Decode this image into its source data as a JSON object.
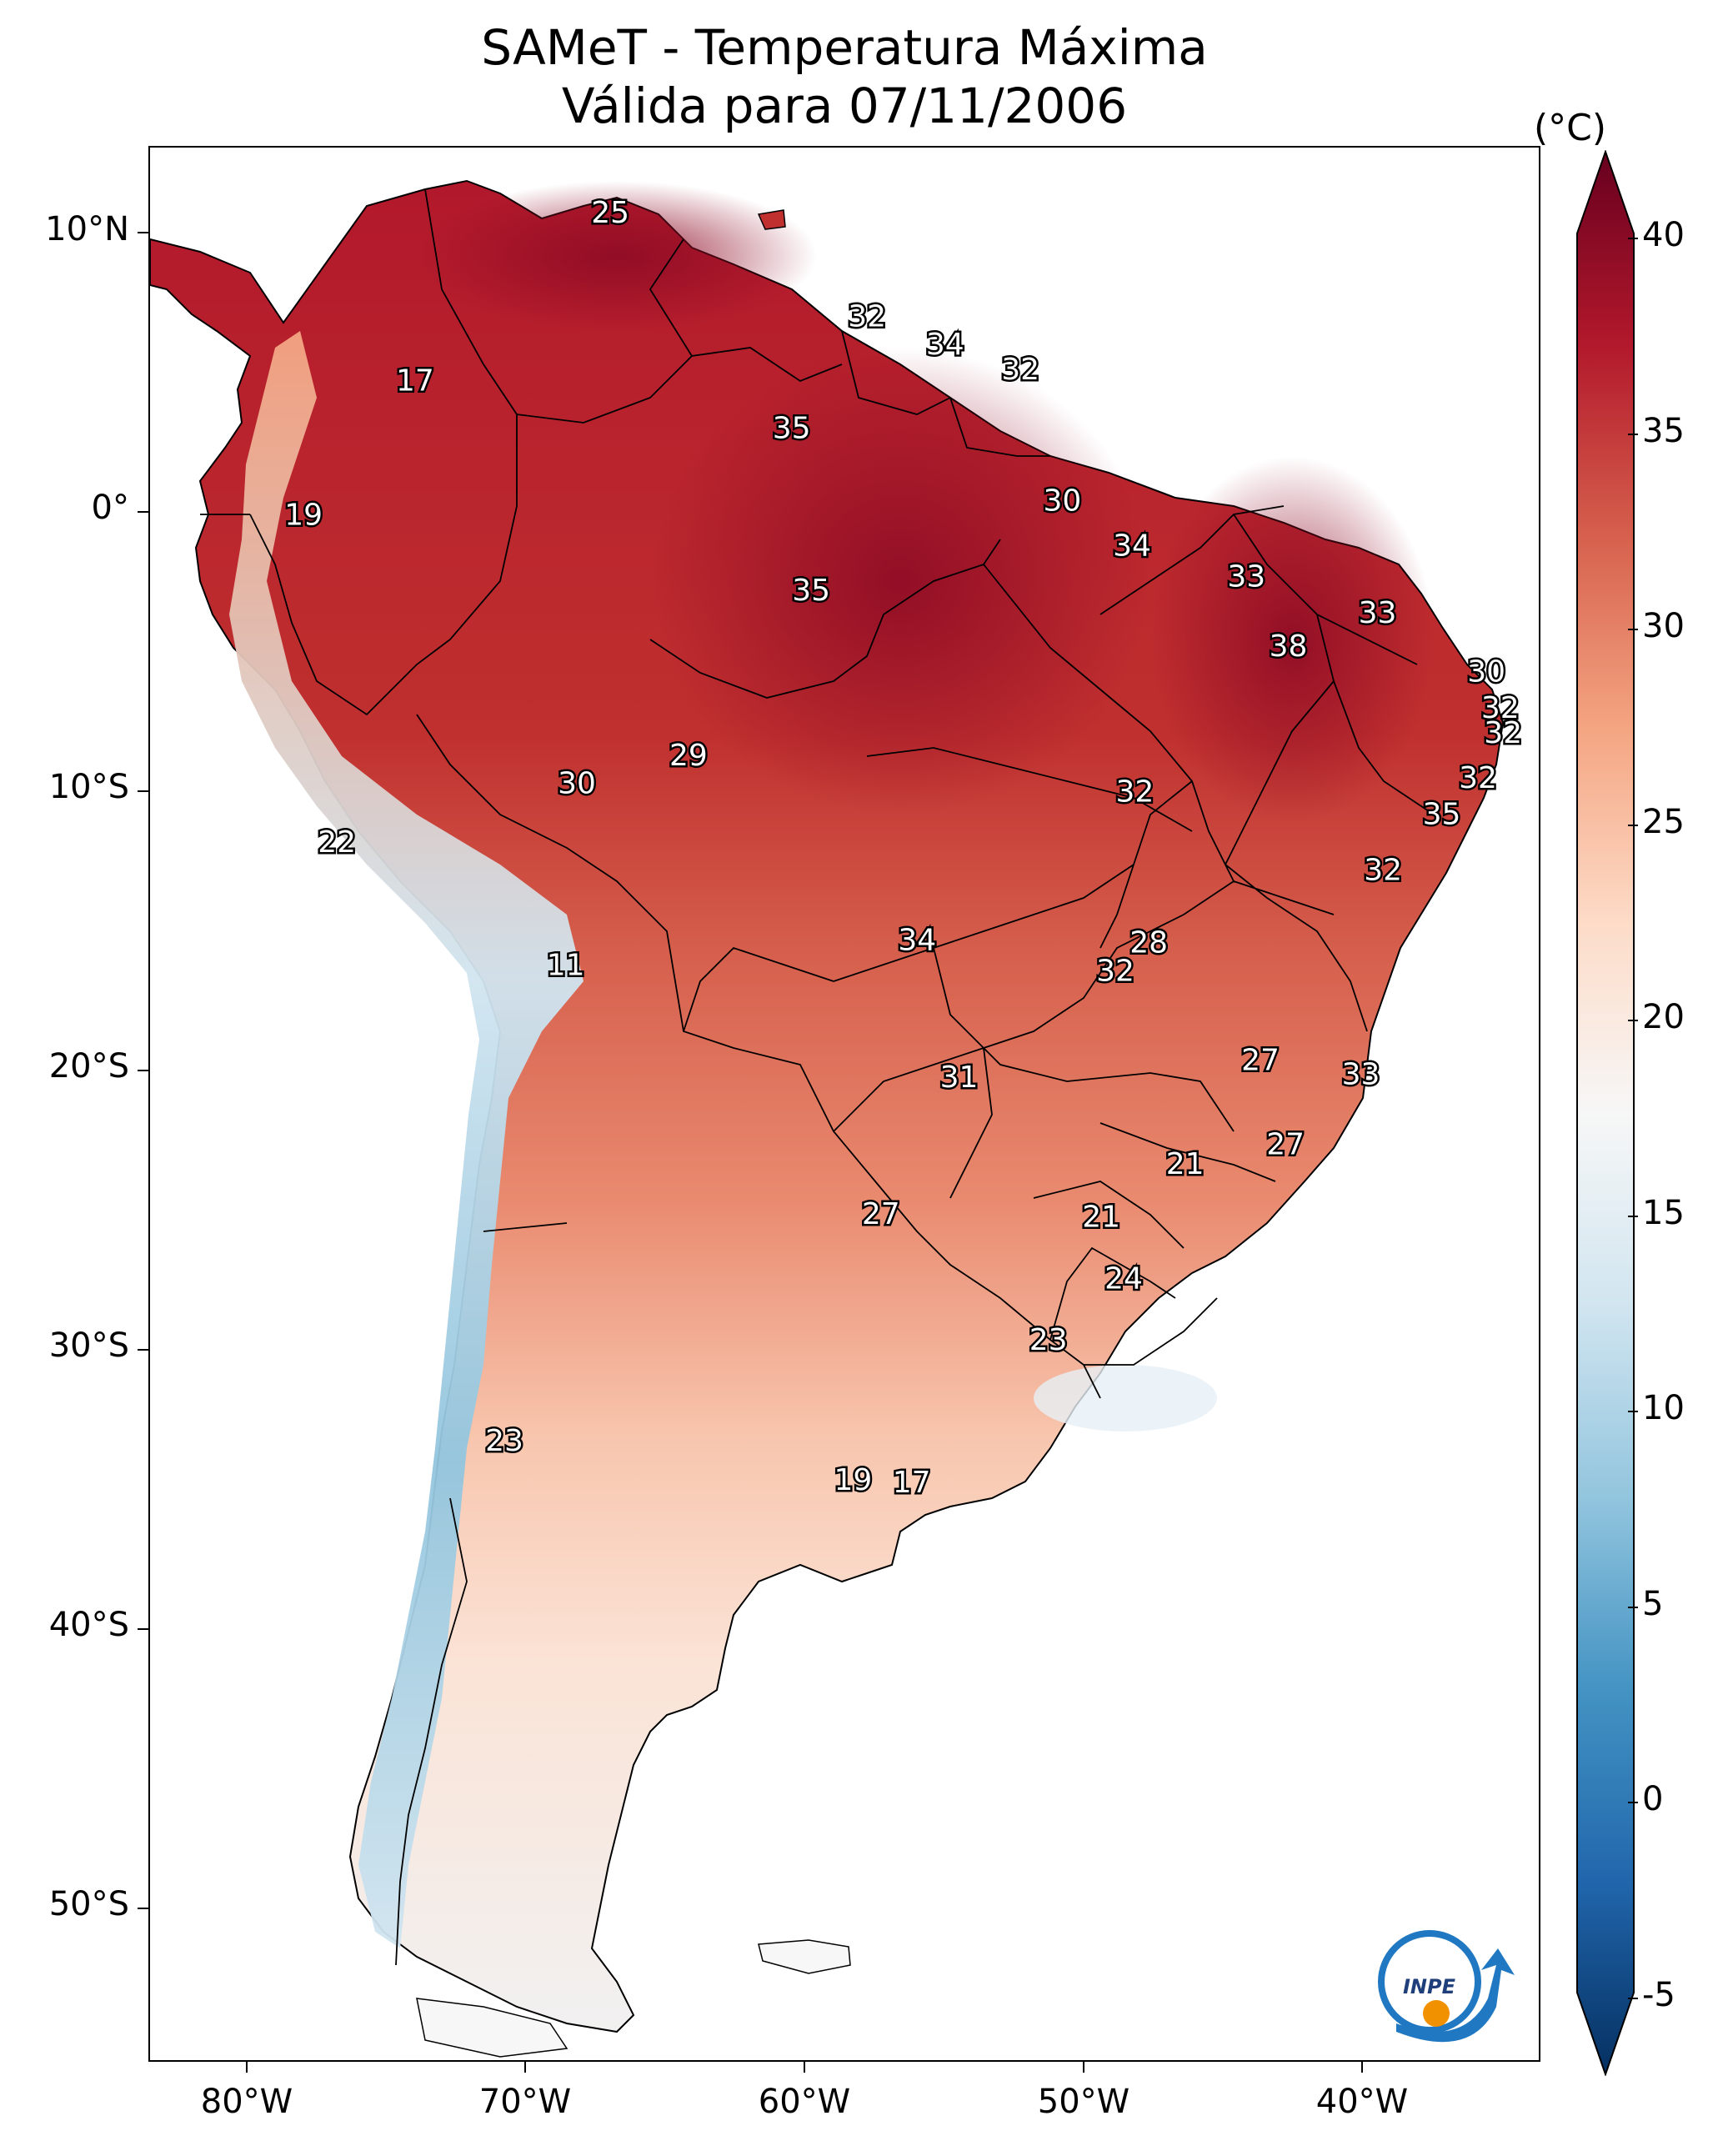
{
  "title_line1": "SAMeT - Temperatura Máxima",
  "title_line2": "Válida para 07/11/2006",
  "latitude_labels": [
    "10°N",
    "0°",
    "10°S",
    "20°S",
    "30°S",
    "40°S",
    "50°S"
  ],
  "longitude_labels": [
    "80°W",
    "70°W",
    "60°W",
    "50°W",
    "40°W"
  ],
  "colorbar": {
    "unit": "(°C)",
    "ticks": [
      "40",
      "35",
      "30",
      "25",
      "20",
      "15",
      "10",
      "5",
      "0",
      "-5"
    ],
    "min": -7,
    "max": 40,
    "colors": [
      "#053061",
      "#2166ac",
      "#4393c3",
      "#92c5de",
      "#d1e5f0",
      "#f7f7f7",
      "#fddbc7",
      "#f4a582",
      "#d6604d",
      "#b2182b",
      "#67001f"
    ]
  },
  "map_values": [
    {
      "value": "25",
      "lon": -67.0,
      "lat": 10.5
    },
    {
      "value": "17",
      "lon": -74.0,
      "lat": 4.5
    },
    {
      "value": "19",
      "lon": -78.0,
      "lat": -0.3
    },
    {
      "value": "32",
      "lon": -57.8,
      "lat": 6.8
    },
    {
      "value": "34",
      "lon": -55.0,
      "lat": 5.8
    },
    {
      "value": "32",
      "lon": -52.3,
      "lat": 4.9
    },
    {
      "value": "35",
      "lon": -60.5,
      "lat": 2.8
    },
    {
      "value": "30",
      "lon": -50.8,
      "lat": 0.2
    },
    {
      "value": "34",
      "lon": -48.3,
      "lat": -1.4
    },
    {
      "value": "35",
      "lon": -59.8,
      "lat": -3.0
    },
    {
      "value": "33",
      "lon": -44.2,
      "lat": -2.5
    },
    {
      "value": "33",
      "lon": -39.5,
      "lat": -3.8
    },
    {
      "value": "38",
      "lon": -42.7,
      "lat": -5.0
    },
    {
      "value": "30",
      "lon": -35.6,
      "lat": -5.9
    },
    {
      "value": "32",
      "lon": -35.1,
      "lat": -7.2
    },
    {
      "value": "32",
      "lon": -35.0,
      "lat": -8.1
    },
    {
      "value": "29",
      "lon": -64.2,
      "lat": -8.9
    },
    {
      "value": "30",
      "lon": -68.2,
      "lat": -9.9
    },
    {
      "value": "32",
      "lon": -48.2,
      "lat": -10.2
    },
    {
      "value": "32",
      "lon": -35.9,
      "lat": -9.7
    },
    {
      "value": "35",
      "lon": -37.2,
      "lat": -11.0
    },
    {
      "value": "22",
      "lon": -76.8,
      "lat": -12.0
    },
    {
      "value": "32",
      "lon": -39.3,
      "lat": -13.0
    },
    {
      "value": "34",
      "lon": -56.0,
      "lat": -15.5
    },
    {
      "value": "28",
      "lon": -47.7,
      "lat": -15.6
    },
    {
      "value": "32",
      "lon": -48.9,
      "lat": -16.6
    },
    {
      "value": "11",
      "lon": -68.6,
      "lat": -16.4
    },
    {
      "value": "27",
      "lon": -43.7,
      "lat": -19.8
    },
    {
      "value": "33",
      "lon": -40.1,
      "lat": -20.3
    },
    {
      "value": "31",
      "lon": -54.5,
      "lat": -20.4
    },
    {
      "value": "27",
      "lon": -42.8,
      "lat": -22.8
    },
    {
      "value": "21",
      "lon": -46.4,
      "lat": -23.5
    },
    {
      "value": "27",
      "lon": -57.3,
      "lat": -25.3
    },
    {
      "value": "21",
      "lon": -49.4,
      "lat": -25.4
    },
    {
      "value": "24",
      "lon": -48.6,
      "lat": -27.6
    },
    {
      "value": "23",
      "lon": -51.3,
      "lat": -29.8
    },
    {
      "value": "23",
      "lon": -70.8,
      "lat": -33.4
    },
    {
      "value": "19",
      "lon": -58.3,
      "lat": -34.8
    },
    {
      "value": "17",
      "lon": -56.2,
      "lat": -34.9
    }
  ]
}
